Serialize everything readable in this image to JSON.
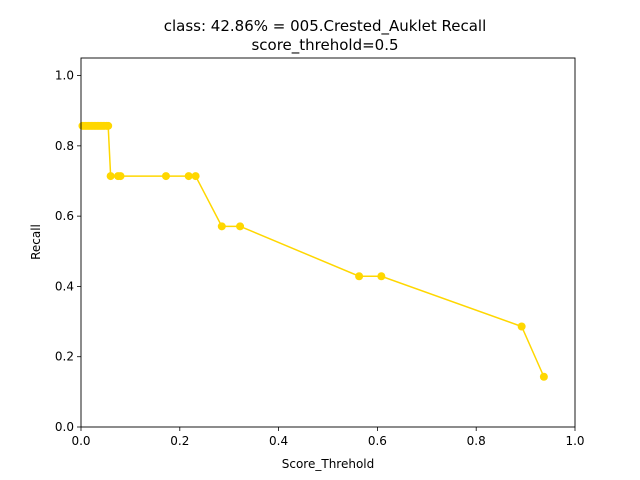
{
  "chart_data": {
    "type": "line",
    "title": "class: 42.86% = 005.Crested_Auklet Recall",
    "subtitle": "score_threhold=0.5",
    "xlabel": "Score_Threhold",
    "ylabel": "Recall",
    "xlim": [
      0.0,
      1.0
    ],
    "ylim": [
      0.0,
      1.05
    ],
    "x_ticks": [
      "0.0",
      "0.2",
      "0.4",
      "0.6",
      "0.8",
      "1.0"
    ],
    "y_ticks": [
      "0.0",
      "0.2",
      "0.4",
      "0.6",
      "0.8",
      "1.0"
    ],
    "grid": false,
    "series_color": "#ffd700",
    "series": [
      {
        "x": [
          0.003,
          0.006,
          0.009,
          0.012,
          0.015,
          0.018,
          0.021,
          0.024,
          0.027,
          0.03,
          0.033,
          0.036,
          0.039,
          0.042,
          0.045,
          0.048,
          0.052,
          0.055,
          0.06,
          0.075,
          0.08,
          0.172,
          0.218,
          0.232,
          0.285,
          0.322,
          0.563,
          0.608,
          0.892,
          0.937
        ],
        "y": [
          0.857,
          0.857,
          0.857,
          0.857,
          0.857,
          0.857,
          0.857,
          0.857,
          0.857,
          0.857,
          0.857,
          0.857,
          0.857,
          0.857,
          0.857,
          0.857,
          0.857,
          0.857,
          0.714,
          0.714,
          0.714,
          0.714,
          0.714,
          0.714,
          0.571,
          0.571,
          0.429,
          0.429,
          0.286,
          0.143
        ]
      }
    ]
  }
}
